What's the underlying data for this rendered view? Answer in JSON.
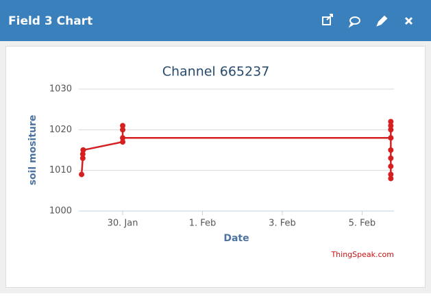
{
  "header": {
    "title": "Field 3 Chart"
  },
  "chart_data": {
    "type": "line",
    "title": "Channel 665237",
    "x_label": "Date",
    "y_label": "soil mositure",
    "credit": "ThingSpeak.com",
    "color": "#d62020",
    "x": [
      28.97,
      29.0,
      29.0,
      29.01,
      29.01,
      30.0,
      30.0,
      30.0,
      30.0,
      36.72,
      36.72,
      36.72,
      36.72,
      36.72,
      36.72,
      36.72,
      36.72,
      36.72,
      36.72
    ],
    "values": [
      1009,
      1013,
      1014,
      1015,
      1015,
      1017,
      1021,
      1020,
      1018,
      1018,
      1008,
      1022,
      1009,
      1021,
      1011,
      1020,
      1013,
      1015,
      1018
    ],
    "xlim": [
      28.9,
      36.8
    ],
    "xticks": [
      {
        "value": 30,
        "label": "30. Jan"
      },
      {
        "value": 32,
        "label": "1. Feb"
      },
      {
        "value": 34,
        "label": "3. Feb"
      },
      {
        "value": 36,
        "label": "5. Feb"
      }
    ],
    "ylim": [
      1000,
      1030
    ],
    "yticks": [
      1000,
      1010,
      1020,
      1030
    ],
    "grid": true
  }
}
